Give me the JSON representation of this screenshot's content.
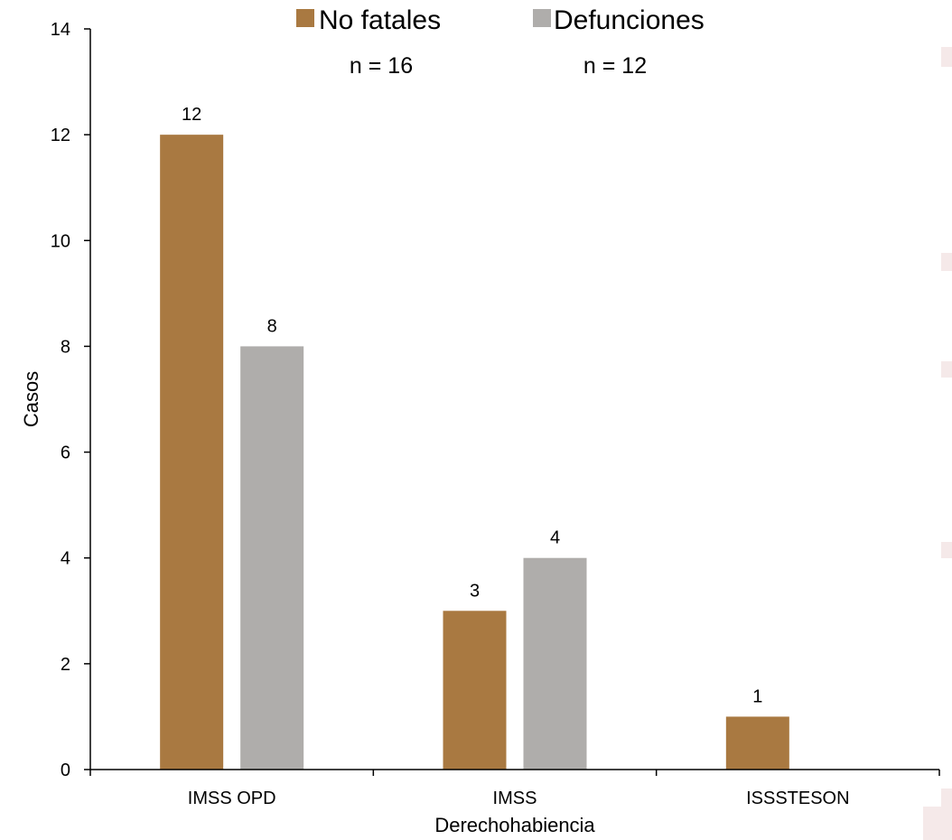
{
  "chart_data": {
    "type": "bar",
    "categories": [
      "IMSS OPD",
      "IMSS",
      "ISSSTESON"
    ],
    "series": [
      {
        "name": "No fatales",
        "values": [
          12,
          3,
          1
        ],
        "color": "#a97941",
        "n_label": "n = 16"
      },
      {
        "name": "Defunciones",
        "values": [
          8,
          4,
          null
        ],
        "color": "#afadab",
        "n_label": "n = 12"
      }
    ],
    "xlabel": "Derechohabiencia",
    "ylabel": "Casos",
    "ylim": [
      0,
      14
    ],
    "yticks": [
      0,
      2,
      4,
      6,
      8,
      10,
      12,
      14
    ],
    "grid": false,
    "legend_position": "top"
  }
}
